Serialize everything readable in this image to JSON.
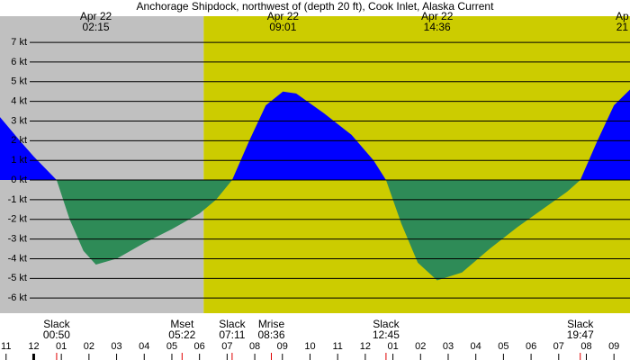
{
  "chart_data": {
    "type": "area",
    "title": "Anchorage Shipdock, northwest of (depth 20 ft), Cook Inlet, Alaska Current",
    "x": [
      -1.22,
      -0.5,
      0.0,
      0.83,
      1.3,
      1.8,
      2.25,
      3.0,
      4.0,
      5.0,
      6.0,
      6.6,
      7.18,
      7.8,
      8.4,
      9.02,
      9.5,
      10.5,
      11.5,
      12.3,
      12.75,
      13.3,
      13.9,
      14.6,
      15.5,
      16.5,
      17.5,
      18.5,
      19.3,
      19.78,
      20.4,
      21.0,
      21.58
    ],
    "values": [
      3.2,
      2.0,
      1.2,
      0,
      -2.0,
      -3.6,
      -4.3,
      -4.0,
      -3.2,
      -2.5,
      -1.7,
      -1.0,
      0,
      2.0,
      3.8,
      4.5,
      4.4,
      3.4,
      2.3,
      1.0,
      0,
      -2.2,
      -4.2,
      -5.1,
      -4.7,
      -3.5,
      -2.4,
      -1.4,
      -0.6,
      0,
      2.0,
      3.8,
      4.6
    ],
    "flood_color": "#0000ff",
    "ebb_color": "#2e8b57",
    "night_color": "#c0c0c0",
    "day_color": "#cccc00",
    "grid": true,
    "day_start": 6.15,
    "xlim": [
      -1.22,
      21.58
    ],
    "ylim": [
      -6.77,
      8.33
    ],
    "yticks": [
      {
        "value": 7,
        "label": "7 kt"
      },
      {
        "value": 6,
        "label": "6 kt"
      },
      {
        "value": 5,
        "label": "5 kt"
      },
      {
        "value": 4,
        "label": "4 kt"
      },
      {
        "value": 3,
        "label": "3 kt"
      },
      {
        "value": 2,
        "label": "2 kt"
      },
      {
        "value": 1,
        "label": "1 kt"
      },
      {
        "value": 0,
        "label": "0 kt"
      },
      {
        "value": -1,
        "label": "-1 kt"
      },
      {
        "value": -2,
        "label": "-2 kt"
      },
      {
        "value": -3,
        "label": "-3 kt"
      },
      {
        "value": -4,
        "label": "-4 kt"
      },
      {
        "value": -5,
        "label": "-5 kt"
      },
      {
        "value": -6,
        "label": "-6 kt"
      }
    ],
    "xticks": [
      {
        "value": -1,
        "label": "11"
      },
      {
        "value": 0,
        "label": "12"
      },
      {
        "value": 1,
        "label": "01"
      },
      {
        "value": 2,
        "label": "02"
      },
      {
        "value": 3,
        "label": "03"
      },
      {
        "value": 4,
        "label": "04"
      },
      {
        "value": 5,
        "label": "05"
      },
      {
        "value": 6,
        "label": "06"
      },
      {
        "value": 7,
        "label": "07"
      },
      {
        "value": 8,
        "label": "08"
      },
      {
        "value": 9,
        "label": "09"
      },
      {
        "value": 10,
        "label": "10"
      },
      {
        "value": 11,
        "label": "11"
      },
      {
        "value": 12,
        "label": "12"
      },
      {
        "value": 13,
        "label": "01"
      },
      {
        "value": 14,
        "label": "02"
      },
      {
        "value": 15,
        "label": "03"
      },
      {
        "value": 16,
        "label": "04"
      },
      {
        "value": 17,
        "label": "05"
      },
      {
        "value": 18,
        "label": "06"
      },
      {
        "value": 19,
        "label": "07"
      },
      {
        "value": 20,
        "label": "08"
      },
      {
        "value": 21,
        "label": "09"
      }
    ],
    "top_labels": [
      {
        "date": "Apr 22",
        "time": "02:15",
        "x": 2.25
      },
      {
        "date": "Apr 22",
        "time": "09:01",
        "x": 9.02
      },
      {
        "date": "Apr 22",
        "time": "14:36",
        "x": 14.6
      },
      {
        "date": "Ap",
        "time": "21",
        "x": 21.3
      }
    ],
    "events": [
      {
        "name": "Slack",
        "time": "00:50",
        "x": 0.83
      },
      {
        "name": "Mset",
        "time": "05:22",
        "x": 5.37
      },
      {
        "name": "Slack",
        "time": "07:11",
        "x": 7.18
      },
      {
        "name": "Mrise",
        "time": "08:36",
        "x": 8.6
      },
      {
        "name": "Slack",
        "time": "12:45",
        "x": 12.75
      },
      {
        "name": "Slack",
        "time": "19:47",
        "x": 19.78
      }
    ]
  }
}
